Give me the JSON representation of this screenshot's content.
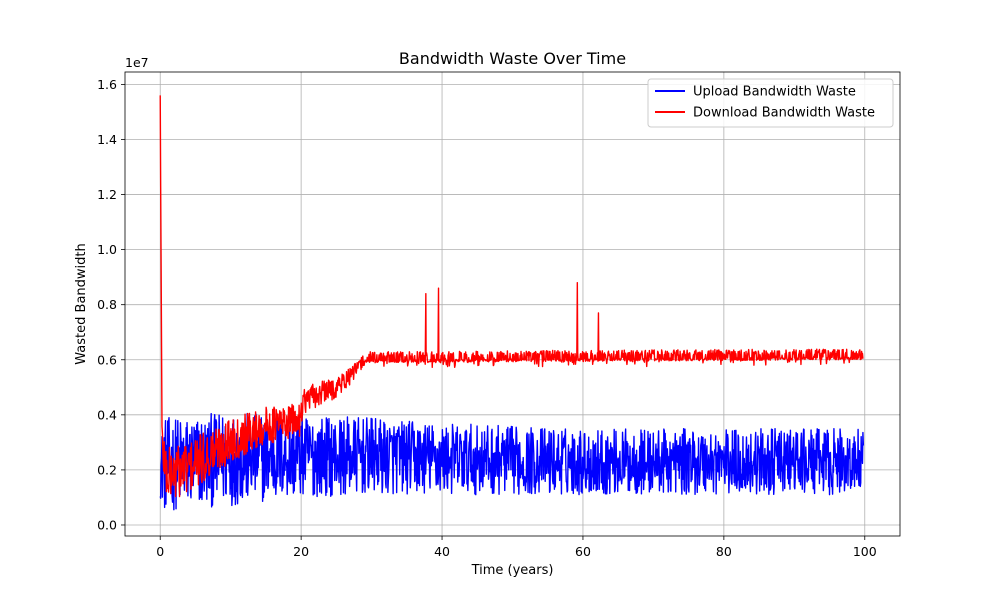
{
  "chart_data": {
    "type": "line",
    "title": "Bandwidth Waste Over Time",
    "xlabel": "Time (years)",
    "ylabel": "Wasted Bandwidth",
    "y_offset_label": "1e7",
    "xlim": [
      -5,
      105
    ],
    "ylim": [
      -0.04,
      1.645
    ],
    "x_ticks": [
      0,
      20,
      40,
      60,
      80,
      100
    ],
    "x_tick_labels": [
      "0",
      "20",
      "40",
      "60",
      "80",
      "100"
    ],
    "y_ticks": [
      0.0,
      0.2,
      0.4,
      0.6,
      0.8,
      1.0,
      1.2,
      1.4,
      1.6
    ],
    "y_tick_labels": [
      "0.0",
      "0.2",
      "0.4",
      "0.6",
      "0.8",
      "1.0",
      "1.2",
      "1.4",
      "1.6"
    ],
    "grid": true,
    "legend_position": "top-right",
    "series": [
      {
        "name": "Upload Bandwidth Waste",
        "color": "#0000ff",
        "profile": [
          {
            "x": 0,
            "mean": 0.2,
            "amp": 0.1
          },
          {
            "x": 0.5,
            "mean": 0.22,
            "amp": 0.17
          },
          {
            "x": 10,
            "mean": 0.24,
            "amp": 0.17
          },
          {
            "x": 20,
            "mean": 0.25,
            "amp": 0.15
          },
          {
            "x": 30,
            "mean": 0.25,
            "amp": 0.14
          },
          {
            "x": 40,
            "mean": 0.24,
            "amp": 0.13
          },
          {
            "x": 60,
            "mean": 0.23,
            "amp": 0.12
          },
          {
            "x": 80,
            "mean": 0.23,
            "amp": 0.12
          },
          {
            "x": 100,
            "mean": 0.23,
            "amp": 0.12
          }
        ],
        "spikes": []
      },
      {
        "name": "Download Bandwidth Waste",
        "color": "#ff0000",
        "profile": [
          {
            "x": 0,
            "mean": 1.56,
            "amp": 0.0
          },
          {
            "x": 0.25,
            "mean": 0.3,
            "amp": 0.1
          },
          {
            "x": 1,
            "mean": 0.18,
            "amp": 0.1
          },
          {
            "x": 5,
            "mean": 0.22,
            "amp": 0.1
          },
          {
            "x": 10,
            "mean": 0.31,
            "amp": 0.08
          },
          {
            "x": 15,
            "mean": 0.36,
            "amp": 0.07
          },
          {
            "x": 19.8,
            "mean": 0.38,
            "amp": 0.06
          },
          {
            "x": 20.2,
            "mean": 0.45,
            "amp": 0.05
          },
          {
            "x": 25,
            "mean": 0.5,
            "amp": 0.04
          },
          {
            "x": 27,
            "mean": 0.54,
            "amp": 0.03
          },
          {
            "x": 29,
            "mean": 0.6,
            "amp": 0.025
          },
          {
            "x": 100,
            "mean": 0.61,
            "amp": 0.025
          }
        ],
        "spikes": [
          {
            "x": 0.0,
            "y": 1.56
          },
          {
            "x": 37.7,
            "y": 0.84
          },
          {
            "x": 39.5,
            "y": 0.86
          },
          {
            "x": 59.2,
            "y": 0.88
          },
          {
            "x": 62.2,
            "y": 0.77
          }
        ]
      }
    ]
  }
}
